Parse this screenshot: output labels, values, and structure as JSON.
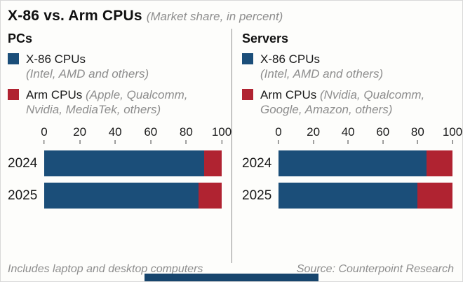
{
  "header": {
    "title": "X-86 vs. Arm CPUs",
    "subtitle": "(Market share, in percent)"
  },
  "colors": {
    "x86": "#1b4e79",
    "arm": "#b02331"
  },
  "panels": [
    {
      "heading": "PCs",
      "legend": [
        {
          "label": "X-86 CPUs",
          "note": "(Intel, AMD and others)"
        },
        {
          "label": "Arm CPUs",
          "note": "(Apple, Qualcomm, Nvidia, MediaTek, others)"
        }
      ],
      "footnote": "Includes laptop and desktop computers"
    },
    {
      "heading": "Servers",
      "legend": [
        {
          "label": "X-86 CPUs",
          "note": "(Intel, AMD and others)"
        },
        {
          "label": "Arm CPUs",
          "note": "(Nvidia, Qualcomm, Google, Amazon, others)"
        }
      ],
      "footnote": "Source: Counterpoint Research"
    }
  ],
  "chart_data": [
    {
      "type": "bar",
      "orientation": "horizontal",
      "stacked": true,
      "title": "PCs",
      "categories": [
        "2024",
        "2025"
      ],
      "series": [
        {
          "name": "X-86 CPUs",
          "values": [
            90,
            87
          ],
          "color": "#1b4e79"
        },
        {
          "name": "Arm CPUs",
          "values": [
            10,
            13
          ],
          "color": "#b02331"
        }
      ],
      "xlim": [
        0,
        100
      ],
      "ticks": [
        0,
        20,
        40,
        60,
        80,
        100
      ],
      "unit": "percent"
    },
    {
      "type": "bar",
      "orientation": "horizontal",
      "stacked": true,
      "title": "Servers",
      "categories": [
        "2024",
        "2025"
      ],
      "series": [
        {
          "name": "X-86 CPUs",
          "values": [
            85,
            80
          ],
          "color": "#1b4e79"
        },
        {
          "name": "Arm CPUs",
          "values": [
            15,
            20
          ],
          "color": "#b02331"
        }
      ],
      "xlim": [
        0,
        100
      ],
      "ticks": [
        0,
        20,
        40,
        60,
        80,
        100
      ],
      "unit": "percent"
    }
  ]
}
